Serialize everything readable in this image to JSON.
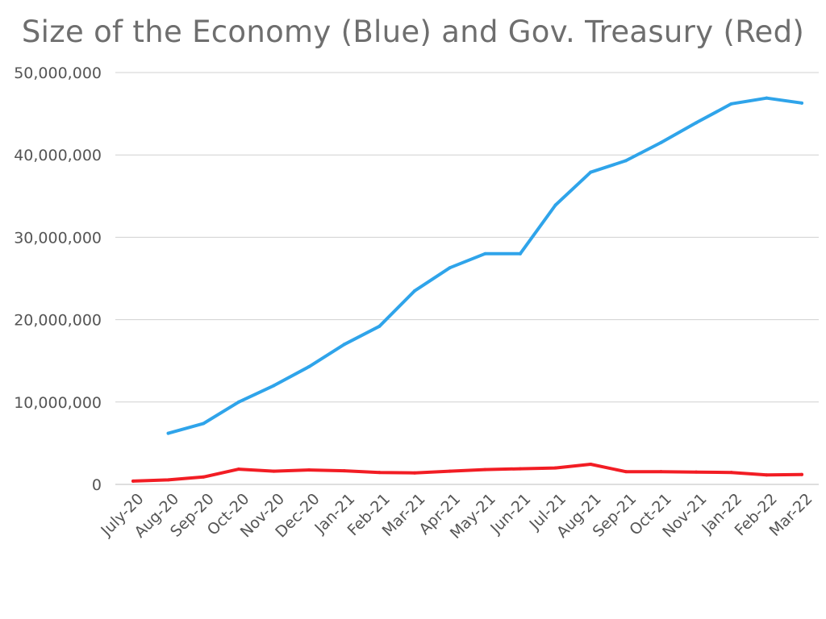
{
  "chart_data": {
    "type": "line",
    "title": "Size of the Economy (Blue) and Gov. Treasury (Red)",
    "xlabel": "",
    "ylabel": "",
    "ylim": [
      0,
      50000000
    ],
    "y_ticks": [
      0,
      10000000,
      20000000,
      30000000,
      40000000,
      50000000
    ],
    "y_tick_labels": [
      "0",
      "10,000,000",
      "20,000,000",
      "30,000,000",
      "40,000,000",
      "50,000,000"
    ],
    "grid": true,
    "categories": [
      "July-20",
      "Aug-20",
      "Sep-20",
      "Oct-20",
      "Nov-20",
      "Dec-20",
      "Jan-21",
      "Feb-21",
      "Mar-21",
      "Apr-21",
      "May-21",
      "Jun-21",
      "Jul-21",
      "Aug-21",
      "Sep-21",
      "Oct-21",
      "Nov-21",
      "Jan-22",
      "Feb-22",
      "Mar-22"
    ],
    "series": [
      {
        "color": "#2fa4ea",
        "values": [
          null,
          6200000,
          7400000,
          10000000,
          12000000,
          14300000,
          17000000,
          19200000,
          23500000,
          26300000,
          28000000,
          28000000,
          33900000,
          37900000,
          39300000,
          41500000,
          43900000,
          46200000,
          46900000,
          46300000
        ]
      },
      {
        "color": "#f21d24",
        "values": [
          400000,
          550000,
          900000,
          1850000,
          1600000,
          1750000,
          1650000,
          1450000,
          1400000,
          1600000,
          1800000,
          1900000,
          2000000,
          2450000,
          1550000,
          1550000,
          1500000,
          1450000,
          1150000,
          1200000
        ]
      }
    ]
  }
}
